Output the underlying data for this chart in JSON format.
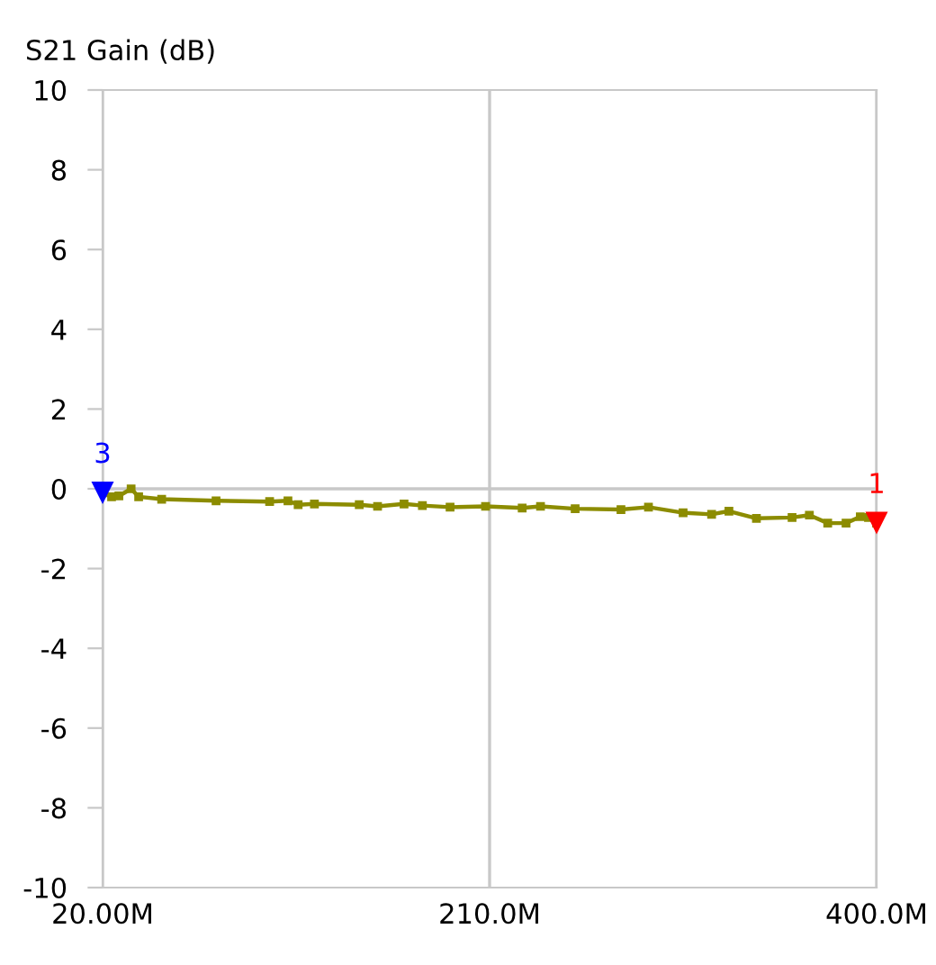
{
  "chart_data": {
    "type": "line",
    "title": "S21 Gain (dB)",
    "x": [
      20,
      24.4,
      28,
      34,
      37.7,
      49,
      75.7,
      102,
      111,
      116,
      124,
      146,
      155,
      168,
      177,
      190.6,
      208,
      226,
      235,
      252,
      274.5,
      288,
      305,
      319,
      327.5,
      341,
      358.5,
      367,
      376,
      385,
      392,
      396,
      400
    ],
    "series": [
      {
        "color": "#8c8c00",
        "values": [
          -0.1,
          -0.2,
          -0.18,
          0.0,
          -0.2,
          -0.26,
          -0.3,
          -0.32,
          -0.3,
          -0.4,
          -0.38,
          -0.4,
          -0.44,
          -0.38,
          -0.42,
          -0.46,
          -0.44,
          -0.48,
          -0.44,
          -0.5,
          -0.52,
          -0.46,
          -0.6,
          -0.64,
          -0.56,
          -0.74,
          -0.72,
          -0.66,
          -0.86,
          -0.86,
          -0.7,
          -0.72,
          -0.86
        ]
      }
    ],
    "xlim": [
      20,
      400
    ],
    "xticks": [
      {
        "value": 20,
        "label": "20.00M"
      },
      {
        "value": 210,
        "label": "210.0M"
      },
      {
        "value": 400,
        "label": "400.0M"
      }
    ],
    "ylim": [
      -10,
      10
    ],
    "yticks": [
      -10,
      -8,
      -6,
      -4,
      -2,
      0,
      2,
      4,
      6,
      8,
      10
    ],
    "grid": "x",
    "marker": "square",
    "line_style": "solid",
    "ref_lines": [
      {
        "axis": "y",
        "value": 0,
        "label": null,
        "color": "#c8c8c8"
      }
    ],
    "annotations": [
      {
        "text": "3",
        "x": 20,
        "y": -0.1
      },
      {
        "text": "1",
        "x": 400,
        "y": -0.86
      }
    ]
  }
}
